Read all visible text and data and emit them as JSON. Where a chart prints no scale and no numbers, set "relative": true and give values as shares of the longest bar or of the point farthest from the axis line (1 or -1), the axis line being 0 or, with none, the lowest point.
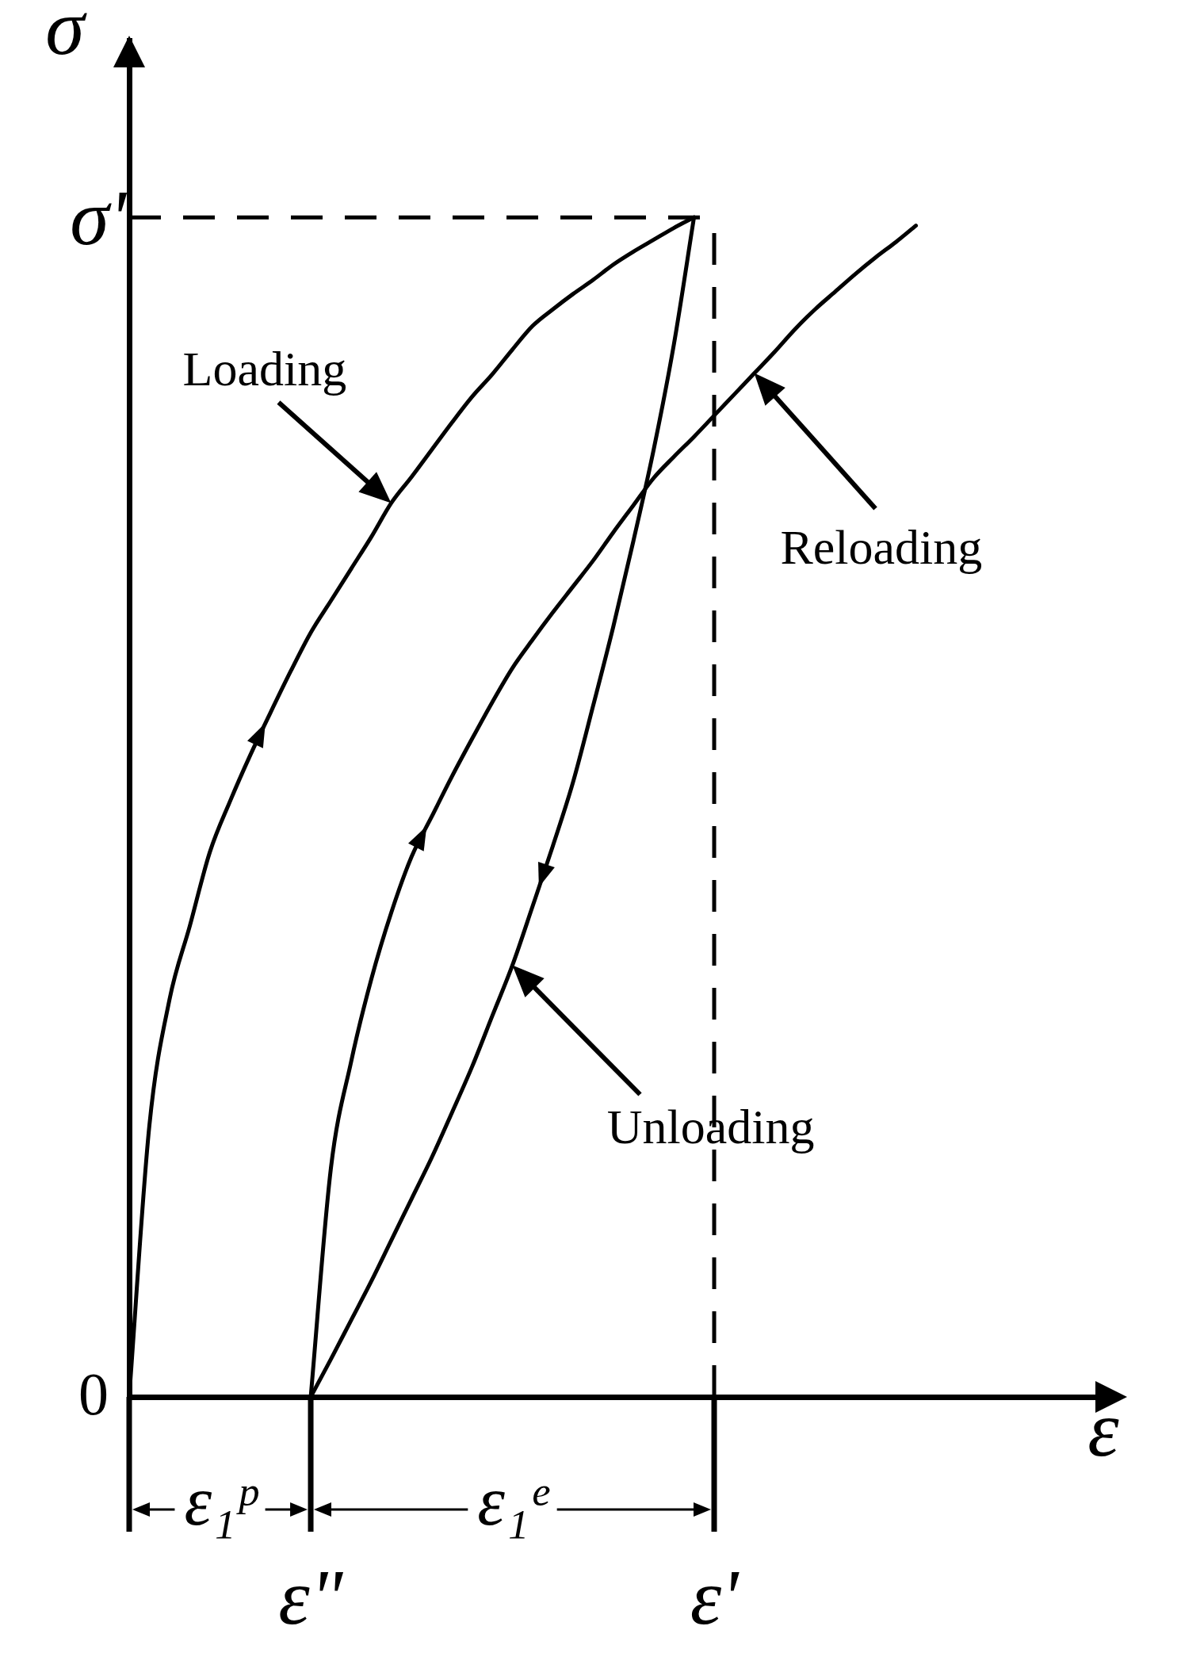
{
  "chart_data": {
    "type": "line",
    "relative": true,
    "xlabel": "ε",
    "ylabel": "σ",
    "categories": [
      null,
      null,
      null,
      null,
      null,
      null,
      null,
      null,
      null,
      "ε\"",
      null,
      null,
      null,
      null,
      null,
      null,
      null,
      null,
      null,
      null,
      null,
      null,
      null,
      null,
      null,
      null,
      null,
      null,
      null,
      "ε'",
      null,
      null,
      null,
      null,
      null,
      null,
      null,
      null,
      null,
      null,
      null,
      null,
      null,
      null,
      null,
      null,
      null,
      null,
      null,
      null
    ],
    "series": [
      {
        "color": "#000000",
        "values": [
          0,
          0.23,
          0.337,
          0.399,
          0.462,
          0.505,
          0.544,
          0.58,
          0.615,
          0.648,
          0.675,
          0.702,
          0.729,
          0.758,
          0.78,
          0.803,
          0.826,
          0.848,
          0.867,
          0.888,
          0.908,
          0.922,
          0.935,
          0.947,
          0.96,
          0.971,
          0.981,
          0.991,
          1,
          null,
          null,
          null,
          null,
          null,
          null,
          null,
          null,
          null,
          null,
          null,
          null,
          null,
          null,
          null,
          null,
          null,
          null,
          null,
          null,
          null
        ]
      },
      {
        "color": "#000000",
        "values": [
          null,
          null,
          null,
          null,
          null,
          null,
          null,
          null,
          null,
          0,
          0.032,
          0.065,
          0.098,
          0.133,
          0.168,
          0.203,
          0.241,
          0.28,
          0.323,
          0.366,
          0.416,
          0.467,
          0.521,
          0.586,
          0.653,
          0.726,
          0.803,
          0.892,
          1,
          null,
          null,
          null,
          null,
          null,
          null,
          null,
          null,
          null,
          null,
          null,
          null,
          null,
          null,
          null,
          null,
          null,
          null,
          null,
          null,
          null
        ]
      },
      {
        "color": "#000000",
        "values": [
          null,
          null,
          null,
          null,
          null,
          null,
          null,
          null,
          null,
          0,
          0.194,
          0.284,
          0.354,
          0.411,
          0.458,
          0.492,
          0.526,
          0.558,
          0.589,
          0.618,
          0.642,
          0.665,
          0.687,
          0.709,
          0.733,
          0.756,
          0.779,
          0.797,
          0.814,
          0.832,
          0.85,
          0.868,
          0.886,
          0.905,
          0.922,
          0.937,
          0.952,
          0.966,
          0.979,
          0.993,
          null,
          null,
          null,
          null,
          null,
          null,
          null,
          null,
          null,
          null
        ]
      }
    ],
    "ref_lines": [
      {
        "axis": "y",
        "value": 1,
        "label": "σ'",
        "line_style": "dashed"
      },
      {
        "axis": "x",
        "value": "ε'",
        "line_style": "dashed"
      }
    ],
    "annotations": [
      "Loading",
      "Reloading",
      "Unloading",
      "0",
      "ε₁ᵖ",
      "ε₁ᵉ"
    ],
    "grid": false,
    "legend": false,
    "marker": "none",
    "line_style": "solid"
  }
}
